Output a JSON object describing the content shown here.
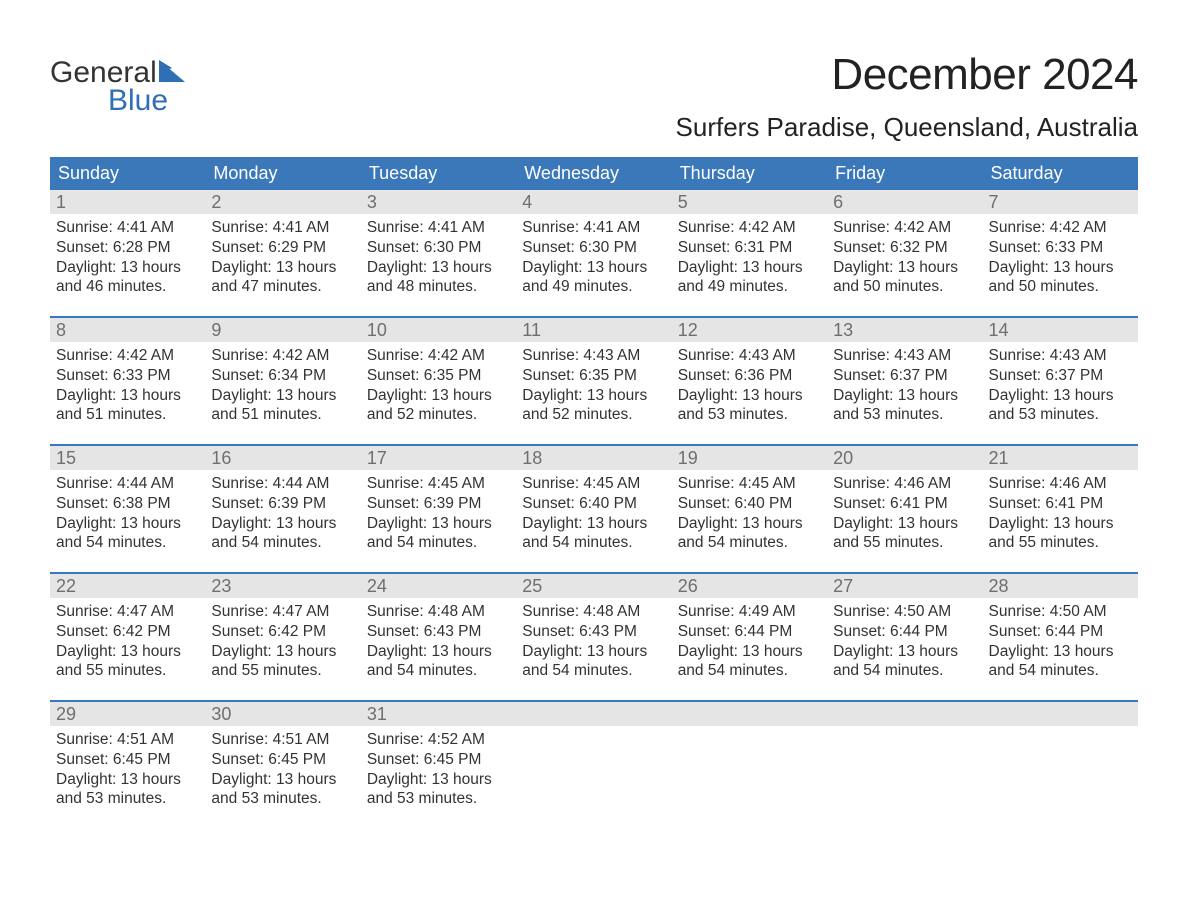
{
  "logo": {
    "line1": "General",
    "line2": "Blue"
  },
  "title": "December 2024",
  "location": "Surfers Paradise, Queensland, Australia",
  "colors": {
    "header_bg": "#3a78b9",
    "header_text": "#ffffff",
    "date_bg": "#e5e5e5",
    "date_text": "#6f6f6f",
    "body_text": "#333333",
    "accent_blue": "#2e6fb5",
    "week_border": "#3a78b9",
    "background": "#ffffff"
  },
  "day_labels": [
    "Sunday",
    "Monday",
    "Tuesday",
    "Wednesday",
    "Thursday",
    "Friday",
    "Saturday"
  ],
  "weeks": [
    [
      {
        "date": "1",
        "sunrise": "Sunrise: 4:41 AM",
        "sunset": "Sunset: 6:28 PM",
        "daylight1": "Daylight: 13 hours",
        "daylight2": "and 46 minutes."
      },
      {
        "date": "2",
        "sunrise": "Sunrise: 4:41 AM",
        "sunset": "Sunset: 6:29 PM",
        "daylight1": "Daylight: 13 hours",
        "daylight2": "and 47 minutes."
      },
      {
        "date": "3",
        "sunrise": "Sunrise: 4:41 AM",
        "sunset": "Sunset: 6:30 PM",
        "daylight1": "Daylight: 13 hours",
        "daylight2": "and 48 minutes."
      },
      {
        "date": "4",
        "sunrise": "Sunrise: 4:41 AM",
        "sunset": "Sunset: 6:30 PM",
        "daylight1": "Daylight: 13 hours",
        "daylight2": "and 49 minutes."
      },
      {
        "date": "5",
        "sunrise": "Sunrise: 4:42 AM",
        "sunset": "Sunset: 6:31 PM",
        "daylight1": "Daylight: 13 hours",
        "daylight2": "and 49 minutes."
      },
      {
        "date": "6",
        "sunrise": "Sunrise: 4:42 AM",
        "sunset": "Sunset: 6:32 PM",
        "daylight1": "Daylight: 13 hours",
        "daylight2": "and 50 minutes."
      },
      {
        "date": "7",
        "sunrise": "Sunrise: 4:42 AM",
        "sunset": "Sunset: 6:33 PM",
        "daylight1": "Daylight: 13 hours",
        "daylight2": "and 50 minutes."
      }
    ],
    [
      {
        "date": "8",
        "sunrise": "Sunrise: 4:42 AM",
        "sunset": "Sunset: 6:33 PM",
        "daylight1": "Daylight: 13 hours",
        "daylight2": "and 51 minutes."
      },
      {
        "date": "9",
        "sunrise": "Sunrise: 4:42 AM",
        "sunset": "Sunset: 6:34 PM",
        "daylight1": "Daylight: 13 hours",
        "daylight2": "and 51 minutes."
      },
      {
        "date": "10",
        "sunrise": "Sunrise: 4:42 AM",
        "sunset": "Sunset: 6:35 PM",
        "daylight1": "Daylight: 13 hours",
        "daylight2": "and 52 minutes."
      },
      {
        "date": "11",
        "sunrise": "Sunrise: 4:43 AM",
        "sunset": "Sunset: 6:35 PM",
        "daylight1": "Daylight: 13 hours",
        "daylight2": "and 52 minutes."
      },
      {
        "date": "12",
        "sunrise": "Sunrise: 4:43 AM",
        "sunset": "Sunset: 6:36 PM",
        "daylight1": "Daylight: 13 hours",
        "daylight2": "and 53 minutes."
      },
      {
        "date": "13",
        "sunrise": "Sunrise: 4:43 AM",
        "sunset": "Sunset: 6:37 PM",
        "daylight1": "Daylight: 13 hours",
        "daylight2": "and 53 minutes."
      },
      {
        "date": "14",
        "sunrise": "Sunrise: 4:43 AM",
        "sunset": "Sunset: 6:37 PM",
        "daylight1": "Daylight: 13 hours",
        "daylight2": "and 53 minutes."
      }
    ],
    [
      {
        "date": "15",
        "sunrise": "Sunrise: 4:44 AM",
        "sunset": "Sunset: 6:38 PM",
        "daylight1": "Daylight: 13 hours",
        "daylight2": "and 54 minutes."
      },
      {
        "date": "16",
        "sunrise": "Sunrise: 4:44 AM",
        "sunset": "Sunset: 6:39 PM",
        "daylight1": "Daylight: 13 hours",
        "daylight2": "and 54 minutes."
      },
      {
        "date": "17",
        "sunrise": "Sunrise: 4:45 AM",
        "sunset": "Sunset: 6:39 PM",
        "daylight1": "Daylight: 13 hours",
        "daylight2": "and 54 minutes."
      },
      {
        "date": "18",
        "sunrise": "Sunrise: 4:45 AM",
        "sunset": "Sunset: 6:40 PM",
        "daylight1": "Daylight: 13 hours",
        "daylight2": "and 54 minutes."
      },
      {
        "date": "19",
        "sunrise": "Sunrise: 4:45 AM",
        "sunset": "Sunset: 6:40 PM",
        "daylight1": "Daylight: 13 hours",
        "daylight2": "and 54 minutes."
      },
      {
        "date": "20",
        "sunrise": "Sunrise: 4:46 AM",
        "sunset": "Sunset: 6:41 PM",
        "daylight1": "Daylight: 13 hours",
        "daylight2": "and 55 minutes."
      },
      {
        "date": "21",
        "sunrise": "Sunrise: 4:46 AM",
        "sunset": "Sunset: 6:41 PM",
        "daylight1": "Daylight: 13 hours",
        "daylight2": "and 55 minutes."
      }
    ],
    [
      {
        "date": "22",
        "sunrise": "Sunrise: 4:47 AM",
        "sunset": "Sunset: 6:42 PM",
        "daylight1": "Daylight: 13 hours",
        "daylight2": "and 55 minutes."
      },
      {
        "date": "23",
        "sunrise": "Sunrise: 4:47 AM",
        "sunset": "Sunset: 6:42 PM",
        "daylight1": "Daylight: 13 hours",
        "daylight2": "and 55 minutes."
      },
      {
        "date": "24",
        "sunrise": "Sunrise: 4:48 AM",
        "sunset": "Sunset: 6:43 PM",
        "daylight1": "Daylight: 13 hours",
        "daylight2": "and 54 minutes."
      },
      {
        "date": "25",
        "sunrise": "Sunrise: 4:48 AM",
        "sunset": "Sunset: 6:43 PM",
        "daylight1": "Daylight: 13 hours",
        "daylight2": "and 54 minutes."
      },
      {
        "date": "26",
        "sunrise": "Sunrise: 4:49 AM",
        "sunset": "Sunset: 6:44 PM",
        "daylight1": "Daylight: 13 hours",
        "daylight2": "and 54 minutes."
      },
      {
        "date": "27",
        "sunrise": "Sunrise: 4:50 AM",
        "sunset": "Sunset: 6:44 PM",
        "daylight1": "Daylight: 13 hours",
        "daylight2": "and 54 minutes."
      },
      {
        "date": "28",
        "sunrise": "Sunrise: 4:50 AM",
        "sunset": "Sunset: 6:44 PM",
        "daylight1": "Daylight: 13 hours",
        "daylight2": "and 54 minutes."
      }
    ],
    [
      {
        "date": "29",
        "sunrise": "Sunrise: 4:51 AM",
        "sunset": "Sunset: 6:45 PM",
        "daylight1": "Daylight: 13 hours",
        "daylight2": "and 53 minutes."
      },
      {
        "date": "30",
        "sunrise": "Sunrise: 4:51 AM",
        "sunset": "Sunset: 6:45 PM",
        "daylight1": "Daylight: 13 hours",
        "daylight2": "and 53 minutes."
      },
      {
        "date": "31",
        "sunrise": "Sunrise: 4:52 AM",
        "sunset": "Sunset: 6:45 PM",
        "daylight1": "Daylight: 13 hours",
        "daylight2": "and 53 minutes."
      },
      {
        "date": "",
        "empty": true
      },
      {
        "date": "",
        "empty": true
      },
      {
        "date": "",
        "empty": true
      },
      {
        "date": "",
        "empty": true
      }
    ]
  ]
}
